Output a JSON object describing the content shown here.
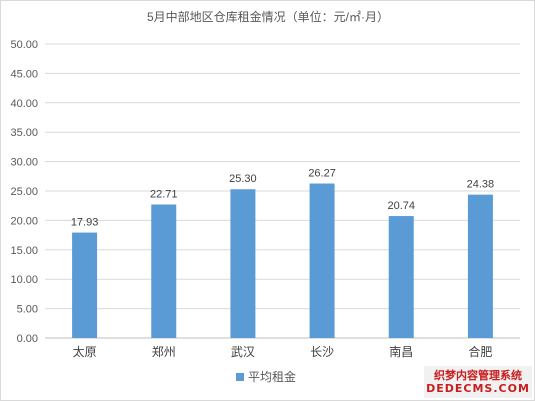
{
  "chart_data": {
    "type": "bar",
    "title": "5月中部地区仓库租金情况（单位：元/㎡·月）",
    "categories": [
      "太原",
      "郑州",
      "武汉",
      "长沙",
      "南昌",
      "合肥"
    ],
    "series": [
      {
        "name": "平均租金",
        "values": [
          17.93,
          22.71,
          25.3,
          26.27,
          20.74,
          24.38
        ],
        "color": "#5b9bd5"
      }
    ],
    "data_labels": [
      "17.93",
      "22.71",
      "25.30",
      "26.27",
      "20.74",
      "24.38"
    ],
    "y_ticks": [
      "0.00",
      "5.00",
      "10.00",
      "15.00",
      "20.00",
      "25.00",
      "30.00",
      "35.00",
      "40.00",
      "45.00",
      "50.00"
    ],
    "ylim": [
      0,
      50
    ],
    "grid": true,
    "legend_position": "bottom"
  },
  "watermark": {
    "line1": "织梦内容管理系统",
    "line2": "DEDECMS.COM"
  }
}
